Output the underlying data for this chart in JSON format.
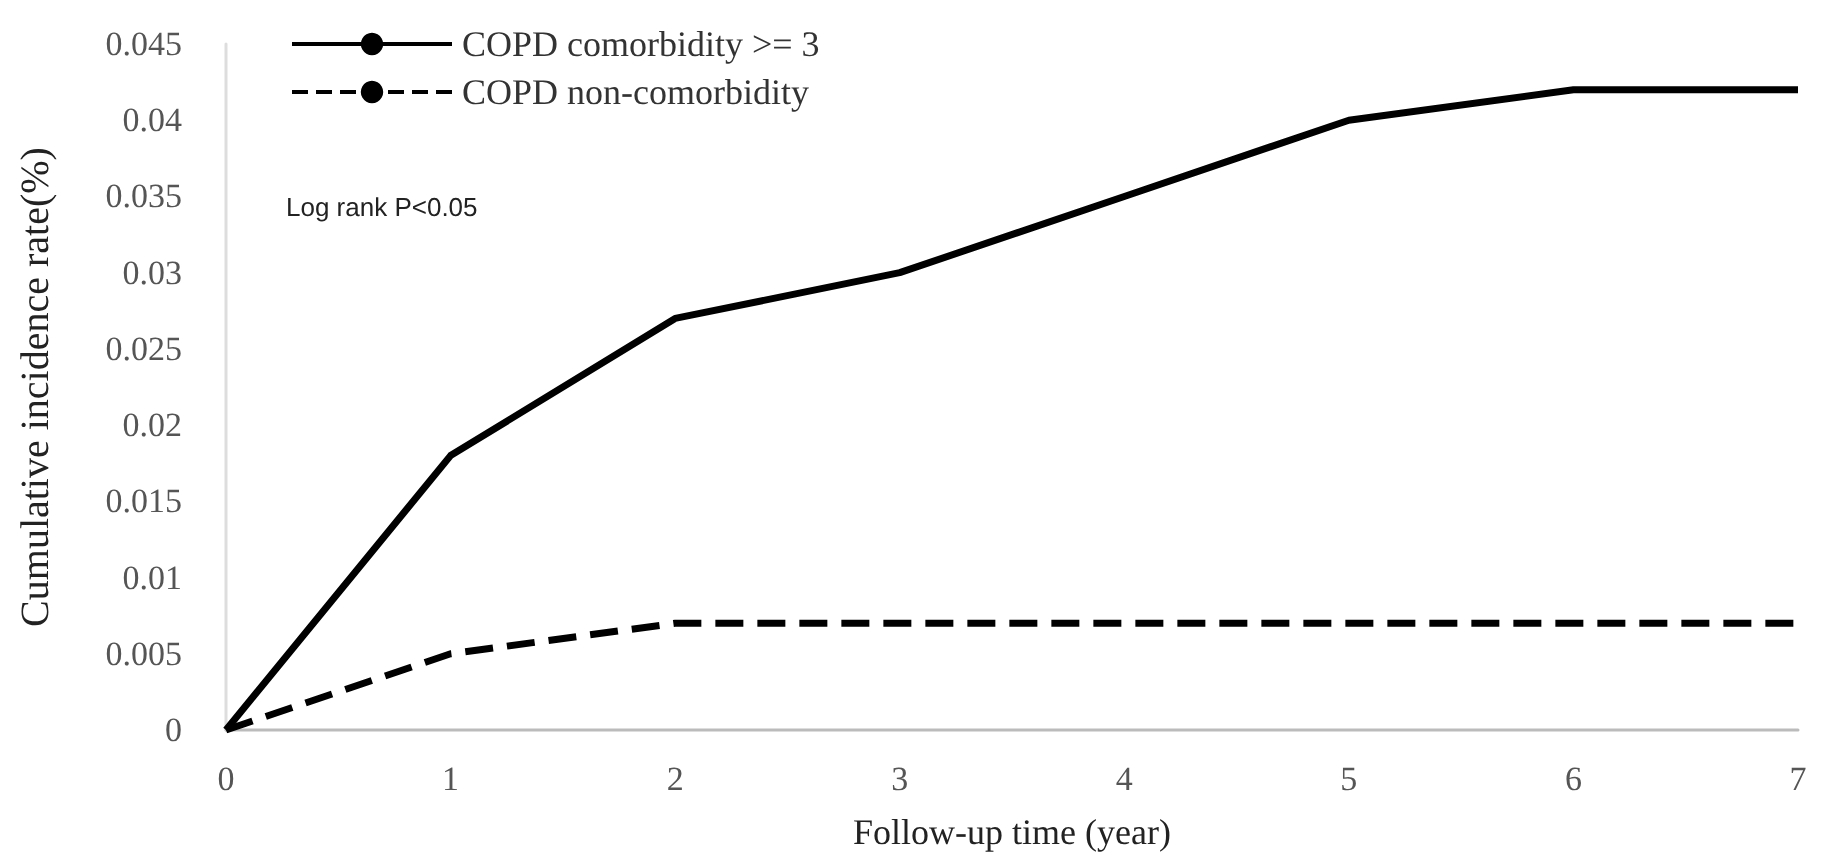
{
  "chart_data": {
    "type": "line",
    "xlabel": "Follow-up time (year)",
    "ylabel": "Cumulative incidence rate(%)",
    "x": [
      0,
      1,
      2,
      3,
      4,
      5,
      6,
      7
    ],
    "series": [
      {
        "name": "COPD comorbidity >= 3",
        "color": "#000000",
        "line_style": "solid",
        "values": [
          0,
          0.018,
          0.027,
          0.03,
          0.035,
          0.04,
          0.042,
          0.042
        ]
      },
      {
        "name": "COPD non-comorbidity",
        "color": "#000000",
        "line_style": "dashed",
        "values": [
          0,
          0.005,
          0.007,
          0.007,
          0.007,
          0.007,
          0.007,
          0.007
        ]
      }
    ],
    "xlim": [
      0,
      7
    ],
    "xticks": [
      0,
      1,
      2,
      3,
      4,
      5,
      6,
      7
    ],
    "ylim": [
      0,
      0.045
    ],
    "yticks": [
      0,
      0.005,
      0.01,
      0.015,
      0.02,
      0.025,
      0.03,
      0.035,
      0.04,
      0.045
    ],
    "annotations": [
      "Log rank P<0.05"
    ],
    "grid": false,
    "legend": "top left",
    "marker": "none"
  }
}
